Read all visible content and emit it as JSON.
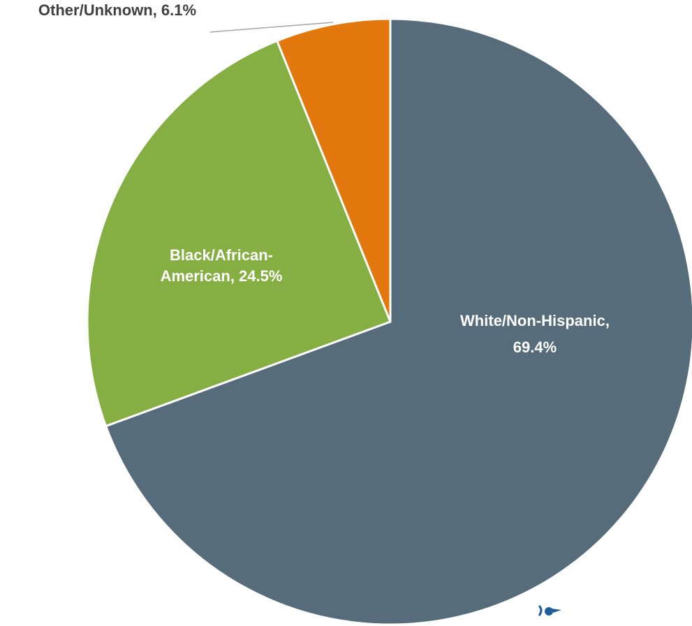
{
  "chart_data": {
    "type": "pie",
    "start_angle_deg": 0,
    "direction": "clockwise",
    "slices": [
      {
        "label": "White/Non-Hispanic",
        "value": 69.4,
        "label_lines": [
          "White/Non-Hispanic,",
          "69.4%"
        ],
        "color": "#566C7A",
        "label_style": "inside"
      },
      {
        "label": "Black/African-American",
        "value": 24.5,
        "label_lines": [
          "Black/African-",
          "American, 24.5%"
        ],
        "color": "#85AE43",
        "label_style": "inside"
      },
      {
        "label": "Other/Unknown",
        "value": 6.1,
        "label_lines": [
          "Other/Unknown, 6.1%"
        ],
        "color": "#E2780E",
        "label_style": "outside-leader"
      }
    ],
    "slice_border_color": "#ffffff",
    "leader_line_color": "#A6A6A6"
  },
  "corner_logo": {
    "icon": "organization-logo-icon",
    "color": "#1F5C99"
  }
}
